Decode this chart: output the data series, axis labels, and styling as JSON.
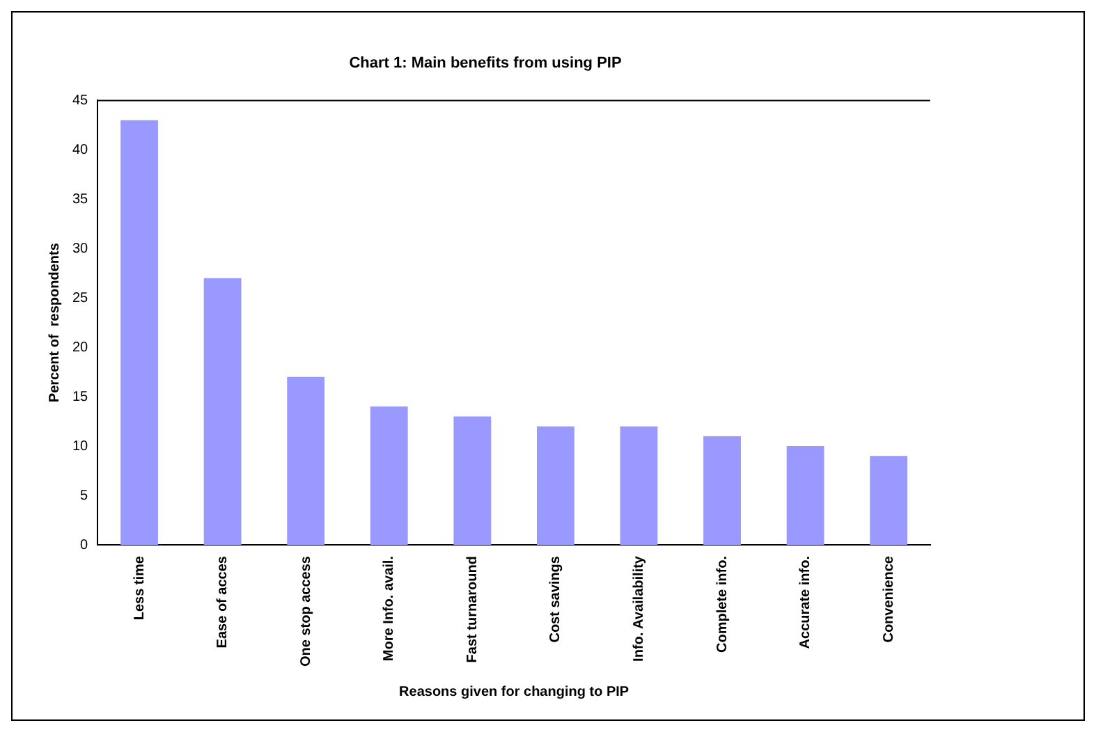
{
  "chart_data": {
    "type": "bar",
    "title": "Chart 1: Main benefits from using PIP",
    "xlabel": "Reasons given for changing to PIP",
    "ylabel": "Percent of  respondents",
    "categories": [
      "Less time",
      "Ease of acces",
      "One stop access",
      "More Info. avail.",
      "Fast turnaround",
      "Cost savings",
      "Info. Availability",
      "Complete info.",
      "Accurate info.",
      "Convenience"
    ],
    "values": [
      43,
      27,
      17,
      14,
      13,
      12,
      12,
      11,
      10,
      9
    ],
    "color": "#9999ff",
    "ylim": [
      0,
      45
    ],
    "yticks": [
      0,
      5,
      10,
      15,
      20,
      25,
      30,
      35,
      40,
      45
    ],
    "grid": false,
    "legend": false
  }
}
